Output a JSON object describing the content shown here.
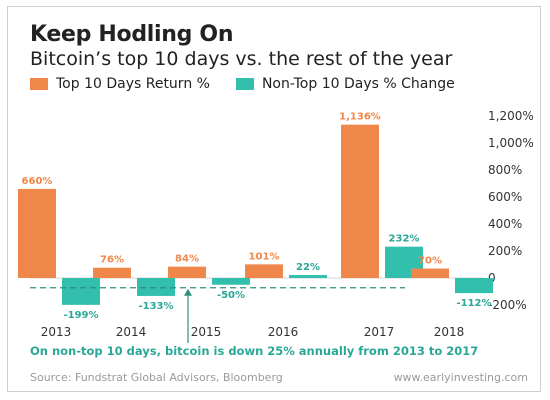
{
  "header": {
    "title": "Keep Hodling On",
    "subtitle": "Bitcoin’s top 10 days vs. the rest of the year"
  },
  "legend": [
    {
      "label": "Top 10 Days Return %",
      "color": "#f0874a"
    },
    {
      "label": "Non-Top 10 Days % Change",
      "color": "#33bfae"
    }
  ],
  "chart_data": {
    "type": "bar",
    "categories": [
      "2013",
      "2014",
      "2015",
      "2016",
      "2017",
      "2018"
    ],
    "series": [
      {
        "name": "Top 10 Days Return %",
        "color": "#f0874a",
        "values": [
          660,
          76,
          84,
          101,
          1136,
          70
        ],
        "labels": [
          "660%",
          "76%",
          "84%",
          "101%",
          "1,136%",
          "70%"
        ]
      },
      {
        "name": "Non-Top 10 Days % Change",
        "color": "#33bfae",
        "values": [
          -199,
          -133,
          -50,
          22,
          232,
          -112
        ],
        "labels": [
          "-199%",
          "-133%",
          "-50%",
          "22%",
          "232%",
          "-112%"
        ]
      }
    ],
    "y_ticks": [
      {
        "value": 1200,
        "label": "1,200%"
      },
      {
        "value": 1000,
        "label": "1,000%"
      },
      {
        "value": 800,
        "label": "800%"
      },
      {
        "value": 600,
        "label": "600%"
      },
      {
        "value": 400,
        "label": "400%"
      },
      {
        "value": 200,
        "label": "200%"
      },
      {
        "value": 0,
        "label": "0"
      },
      {
        "value": -200,
        "label": "-200%"
      }
    ],
    "ylim": [
      -200,
      1200
    ],
    "reference_line": {
      "value": -72,
      "style": "dashed",
      "color": "#2f8f7e"
    },
    "annotation": "On non-top 10 days, bitcoin is down 25% annually from 2013 to 2017"
  },
  "footer": {
    "source": "Source: Fundstrat Global Advisors, Bloomberg",
    "site": "www.earlyinvesting.com"
  }
}
